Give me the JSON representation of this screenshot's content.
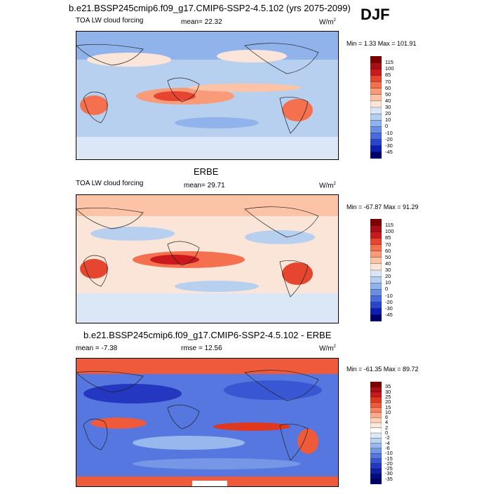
{
  "season": "DJF",
  "panels": [
    {
      "title": "b.e21.BSSP245cmip6.f09_g17.CMIP6-SSP2-4.5.102 (yrs 2075-2099)",
      "variable": "TOA LW cloud forcing",
      "stat_left": "mean=  22.32",
      "units": "W/m",
      "units_sup": "2",
      "minmax": "Min =   1.33 Max = 101.91",
      "colorbar": {
        "levels": [
          "115",
          "100",
          "85",
          "70",
          "60",
          "50",
          "40",
          "30",
          "20",
          "10",
          "0",
          "-10",
          "-20",
          "-30",
          "-45"
        ],
        "colors": [
          "#7f0000",
          "#a50f15",
          "#cb181d",
          "#e6452f",
          "#f4704e",
          "#f99a78",
          "#fcc3a7",
          "#fbe5d8",
          "#dbe7f6",
          "#b8d0f0",
          "#8fb3ea",
          "#6b8fe3",
          "#4a6bde",
          "#2a46cf",
          "#0d1fb0",
          "#00006b"
        ]
      }
    },
    {
      "title": "ERBE",
      "variable": "TOA LW cloud forcing",
      "stat_left": "mean=  29.71",
      "units": "W/m",
      "units_sup": "2",
      "minmax": "Min = -67.87 Max =  91.29",
      "colorbar": {
        "levels": [
          "115",
          "100",
          "85",
          "70",
          "60",
          "50",
          "40",
          "30",
          "20",
          "10",
          "0",
          "-10",
          "-20",
          "-30",
          "-45"
        ],
        "colors": [
          "#7f0000",
          "#a50f15",
          "#cb181d",
          "#e6452f",
          "#f4704e",
          "#f99a78",
          "#fcc3a7",
          "#fbe5d8",
          "#dbe7f6",
          "#b8d0f0",
          "#8fb3ea",
          "#6b8fe3",
          "#4a6bde",
          "#2a46cf",
          "#0d1fb0",
          "#00006b"
        ]
      }
    },
    {
      "title": "b.e21.BSSP245cmip6.f09_g17.CMIP6-SSP2-4.5.102 - ERBE",
      "stat_left": "mean =  -7.38",
      "stat_mid": "rmse =  12.56",
      "units": "W/m",
      "units_sup": "2",
      "minmax": "Min = -61.35 Max =  89.72",
      "colorbar": {
        "levels": [
          "35",
          "30",
          "25",
          "20",
          "15",
          "10",
          "6",
          "4",
          "2",
          "0",
          "-2",
          "-4",
          "-6",
          "-10",
          "-15",
          "-20",
          "-25",
          "-30",
          "-35"
        ],
        "colors": [
          "#7f0000",
          "#a50f15",
          "#cb181d",
          "#e0381f",
          "#ef5a3a",
          "#f7805f",
          "#fba98a",
          "#fdcfb8",
          "#fde9dd",
          "#ffffff",
          "#dde7f7",
          "#bdd2f1",
          "#98b7ec",
          "#7597e6",
          "#5577df",
          "#3a57d3",
          "#2337c0",
          "#1020a3",
          "#000c80",
          "#00006b"
        ]
      }
    }
  ],
  "chart_data": [
    {
      "type": "heatmap",
      "title": "b.e21.BSSP245cmip6.f09_g17.CMIP6-SSP2-4.5.102 (yrs 2075-2099)",
      "variable": "TOA LW cloud forcing",
      "mean": 22.32,
      "min": 1.33,
      "max": 101.91,
      "units": "W/m2",
      "contour_levels": [
        -45,
        -30,
        -20,
        -10,
        0,
        10,
        20,
        30,
        40,
        50,
        60,
        70,
        85,
        100,
        115
      ]
    },
    {
      "type": "heatmap",
      "title": "ERBE",
      "variable": "TOA LW cloud forcing",
      "mean": 29.71,
      "min": -67.87,
      "max": 91.29,
      "units": "W/m2",
      "contour_levels": [
        -45,
        -30,
        -20,
        -10,
        0,
        10,
        20,
        30,
        40,
        50,
        60,
        70,
        85,
        100,
        115
      ]
    },
    {
      "type": "heatmap",
      "title": "b.e21.BSSP245cmip6.f09_g17.CMIP6-SSP2-4.5.102 - ERBE",
      "mean": -7.38,
      "rmse": 12.56,
      "min": -61.35,
      "max": 89.72,
      "units": "W/m2",
      "contour_levels": [
        -35,
        -30,
        -25,
        -20,
        -15,
        -10,
        -6,
        -4,
        -2,
        0,
        2,
        4,
        6,
        10,
        15,
        20,
        25,
        30,
        35
      ]
    }
  ]
}
